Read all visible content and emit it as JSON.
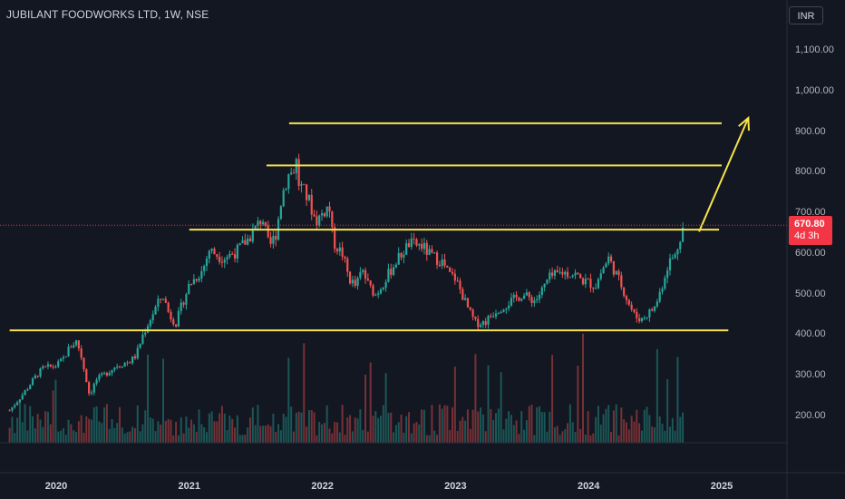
{
  "header": {
    "title": "JUBILANT FOODWORKS LTD, 1W, NSE",
    "currency": "INR"
  },
  "price_badge": {
    "price": "670.80",
    "countdown": "4d 3h"
  },
  "colors": {
    "background": "#131722",
    "up": "#26a69a",
    "down": "#ef5350",
    "drawing": "#f7e44b",
    "badge": "#f23645"
  },
  "chart_data": {
    "type": "candlestick",
    "ylim": [
      120,
      1170
    ],
    "y_ticks": [
      "1,100.00",
      "1,000.00",
      "900.00",
      "800.00",
      "700.00",
      "600.00",
      "500.00",
      "400.00",
      "300.00",
      "200.00"
    ],
    "y_tick_values": [
      1100,
      1000,
      900,
      800,
      700,
      600,
      500,
      400,
      300,
      200
    ],
    "x_ticks": [
      "2020",
      "2021",
      "2022",
      "2023",
      "2024",
      "2025"
    ],
    "x_tick_values": [
      2020,
      2021,
      2022,
      2023,
      2024,
      2025
    ],
    "last_price": 670.8,
    "price_path": [
      [
        2019.65,
        215
      ],
      [
        2019.75,
        255
      ],
      [
        2019.85,
        300
      ],
      [
        2019.9,
        318
      ],
      [
        2020.0,
        325
      ],
      [
        2020.05,
        340
      ],
      [
        2020.1,
        370
      ],
      [
        2020.15,
        385
      ],
      [
        2020.18,
        360
      ],
      [
        2020.22,
        300
      ],
      [
        2020.25,
        252
      ],
      [
        2020.3,
        290
      ],
      [
        2020.35,
        300
      ],
      [
        2020.45,
        325
      ],
      [
        2020.55,
        335
      ],
      [
        2020.6,
        350
      ],
      [
        2020.65,
        400
      ],
      [
        2020.7,
        435
      ],
      [
        2020.75,
        470
      ],
      [
        2020.8,
        500
      ],
      [
        2020.85,
        450
      ],
      [
        2020.9,
        430
      ],
      [
        2020.95,
        480
      ],
      [
        2021.0,
        525
      ],
      [
        2021.1,
        560
      ],
      [
        2021.15,
        610
      ],
      [
        2021.25,
        590
      ],
      [
        2021.35,
        605
      ],
      [
        2021.45,
        640
      ],
      [
        2021.55,
        690
      ],
      [
        2021.6,
        615
      ],
      [
        2021.65,
        650
      ],
      [
        2021.7,
        750
      ],
      [
        2021.75,
        800
      ],
      [
        2021.78,
        800
      ],
      [
        2021.8,
        840
      ],
      [
        2021.82,
        775
      ],
      [
        2021.85,
        760
      ],
      [
        2021.9,
        730
      ],
      [
        2021.95,
        680
      ],
      [
        2022.0,
        700
      ],
      [
        2022.05,
        720
      ],
      [
        2022.08,
        630
      ],
      [
        2022.15,
        600
      ],
      [
        2022.2,
        540
      ],
      [
        2022.25,
        520
      ],
      [
        2022.3,
        560
      ],
      [
        2022.35,
        520
      ],
      [
        2022.4,
        500
      ],
      [
        2022.45,
        525
      ],
      [
        2022.55,
        580
      ],
      [
        2022.65,
        625
      ],
      [
        2022.75,
        620
      ],
      [
        2022.8,
        600
      ],
      [
        2022.9,
        580
      ],
      [
        2022.95,
        550
      ],
      [
        2023.0,
        540
      ],
      [
        2023.05,
        500
      ],
      [
        2023.1,
        460
      ],
      [
        2023.15,
        430
      ],
      [
        2023.22,
        432
      ],
      [
        2023.3,
        460
      ],
      [
        2023.4,
        480
      ],
      [
        2023.5,
        500
      ],
      [
        2023.6,
        485
      ],
      [
        2023.65,
        510
      ],
      [
        2023.7,
        540
      ],
      [
        2023.8,
        555
      ],
      [
        2023.9,
        550
      ],
      [
        2023.95,
        535
      ],
      [
        2024.0,
        530
      ],
      [
        2024.05,
        520
      ],
      [
        2024.1,
        560
      ],
      [
        2024.15,
        590
      ],
      [
        2024.2,
        555
      ],
      [
        2024.25,
        520
      ],
      [
        2024.3,
        480
      ],
      [
        2024.35,
        445
      ],
      [
        2024.4,
        440
      ],
      [
        2024.45,
        455
      ],
      [
        2024.5,
        470
      ],
      [
        2024.55,
        520
      ],
      [
        2024.6,
        580
      ],
      [
        2024.65,
        595
      ],
      [
        2024.7,
        660
      ],
      [
        2024.72,
        670
      ]
    ],
    "drawings": {
      "horizontal_lines": [
        {
          "price": 922,
          "from": 2021.75,
          "to": 2025.0
        },
        {
          "price": 818,
          "from": 2021.58,
          "to": 2025.0
        },
        {
          "price": 660,
          "from": 2021.0,
          "to": 2024.98
        },
        {
          "price": 412,
          "from": 2019.65,
          "to": 2025.05
        }
      ],
      "projection_arrow": [
        [
          2024.83,
          655
        ],
        [
          2025.2,
          935
        ]
      ]
    }
  }
}
